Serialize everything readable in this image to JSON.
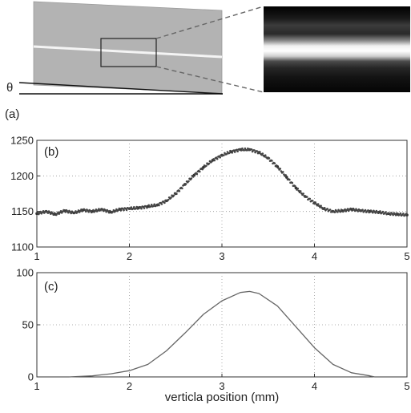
{
  "figure": {
    "panel_a_label": "(a)",
    "angle_symbol": "θ"
  },
  "chart_data": [
    {
      "type": "scatter",
      "panel_label": "(b)",
      "xlim": [
        1,
        5
      ],
      "ylim": [
        1100,
        1250
      ],
      "xticks": [
        "1",
        "2",
        "3",
        "4",
        "5"
      ],
      "yticks": [
        "1100",
        "1150",
        "1200",
        "1250"
      ],
      "grid": true,
      "series": [
        {
          "x": [
            1.0,
            1.1,
            1.2,
            1.3,
            1.4,
            1.5,
            1.6,
            1.7,
            1.8,
            1.9,
            2.0,
            2.1,
            2.2,
            2.3,
            2.4,
            2.5,
            2.6,
            2.7,
            2.8,
            2.9,
            3.0,
            3.1,
            3.2,
            3.3,
            3.4,
            3.5,
            3.6,
            3.7,
            3.8,
            3.9,
            4.0,
            4.1,
            4.2,
            4.3,
            4.4,
            4.5,
            4.6,
            4.7,
            4.8,
            4.9,
            5.0
          ],
          "y": [
            1147,
            1150,
            1146,
            1151,
            1148,
            1152,
            1150,
            1153,
            1149,
            1153,
            1154,
            1155,
            1157,
            1159,
            1165,
            1175,
            1188,
            1201,
            1212,
            1222,
            1229,
            1234,
            1237,
            1237,
            1233,
            1225,
            1213,
            1198,
            1183,
            1171,
            1162,
            1154,
            1150,
            1151,
            1153,
            1151,
            1150,
            1149,
            1147,
            1146,
            1145
          ]
        }
      ]
    },
    {
      "type": "line",
      "panel_label": "(c)",
      "xlabel": "verticla position (mm)",
      "xlim": [
        1,
        5
      ],
      "ylim": [
        0,
        100
      ],
      "xticks": [
        "1",
        "2",
        "3",
        "4",
        "5"
      ],
      "yticks": [
        "0",
        "50",
        "100"
      ],
      "grid": true,
      "series": [
        {
          "x": [
            1.35,
            1.6,
            1.8,
            2.0,
            2.2,
            2.4,
            2.6,
            2.8,
            3.0,
            3.2,
            3.3,
            3.4,
            3.6,
            3.8,
            4.0,
            4.2,
            4.4,
            4.6,
            4.65
          ],
          "y": [
            0,
            1,
            3,
            6,
            12,
            25,
            42,
            60,
            73,
            81,
            82,
            80,
            68,
            48,
            28,
            12,
            4,
            1,
            0
          ]
        }
      ]
    }
  ]
}
